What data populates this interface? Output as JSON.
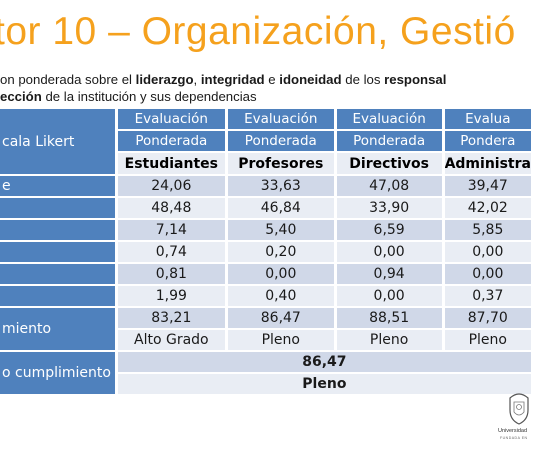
{
  "slide": {
    "title": "tor 10 – Organización, Gestió",
    "subtitle": {
      "l1_a": "on ponderada sobre el ",
      "l1_b": "liderazgo",
      "l1_c": ", ",
      "l1_d": "integridad",
      "l1_e": " e ",
      "l1_f": "idoneidad",
      "l1_g": " de los ",
      "l1_h": "responsal",
      "l2_a": "ección",
      "l2_b": " de la institución y sus dependencias"
    }
  },
  "table": {
    "corner_label": "cala Likert",
    "header_top": [
      "Evaluación",
      "Evaluación",
      "Evaluación",
      "Evalua"
    ],
    "header_mid": [
      "Ponderada",
      "Ponderada",
      "Ponderada",
      "Pondera"
    ],
    "groups": [
      "Estudiantes",
      "Profesores",
      "Directivos",
      "Administra"
    ],
    "rows": [
      {
        "label": "e",
        "values": [
          "24,06",
          "33,63",
          "47,08",
          "39,47"
        ]
      },
      {
        "label": "",
        "values": [
          "48,48",
          "46,84",
          "33,90",
          "42,02"
        ]
      },
      {
        "label": "",
        "values": [
          "7,14",
          "5,40",
          "6,59",
          "5,85"
        ]
      },
      {
        "label": "",
        "values": [
          "0,74",
          "0,20",
          "0,00",
          "0,00"
        ]
      },
      {
        "label": "",
        "values": [
          "0,81",
          "0,00",
          "0,94",
          "0,00"
        ]
      },
      {
        "label": "",
        "values": [
          "1,99",
          "0,40",
          "0,00",
          "0,37"
        ]
      }
    ],
    "cumplimiento": {
      "label": "miento",
      "values": [
        "83,21",
        "86,47",
        "88,51",
        "87,70"
      ],
      "grades": [
        "Alto Grado",
        "Pleno",
        "Pleno",
        "Pleno"
      ]
    },
    "grado_cumplimiento": {
      "label": "o cumplimiento",
      "value": "86,47",
      "grade": "Pleno"
    }
  },
  "logo": {
    "name": "Universidad",
    "sub": "FUNDADA EN"
  }
}
